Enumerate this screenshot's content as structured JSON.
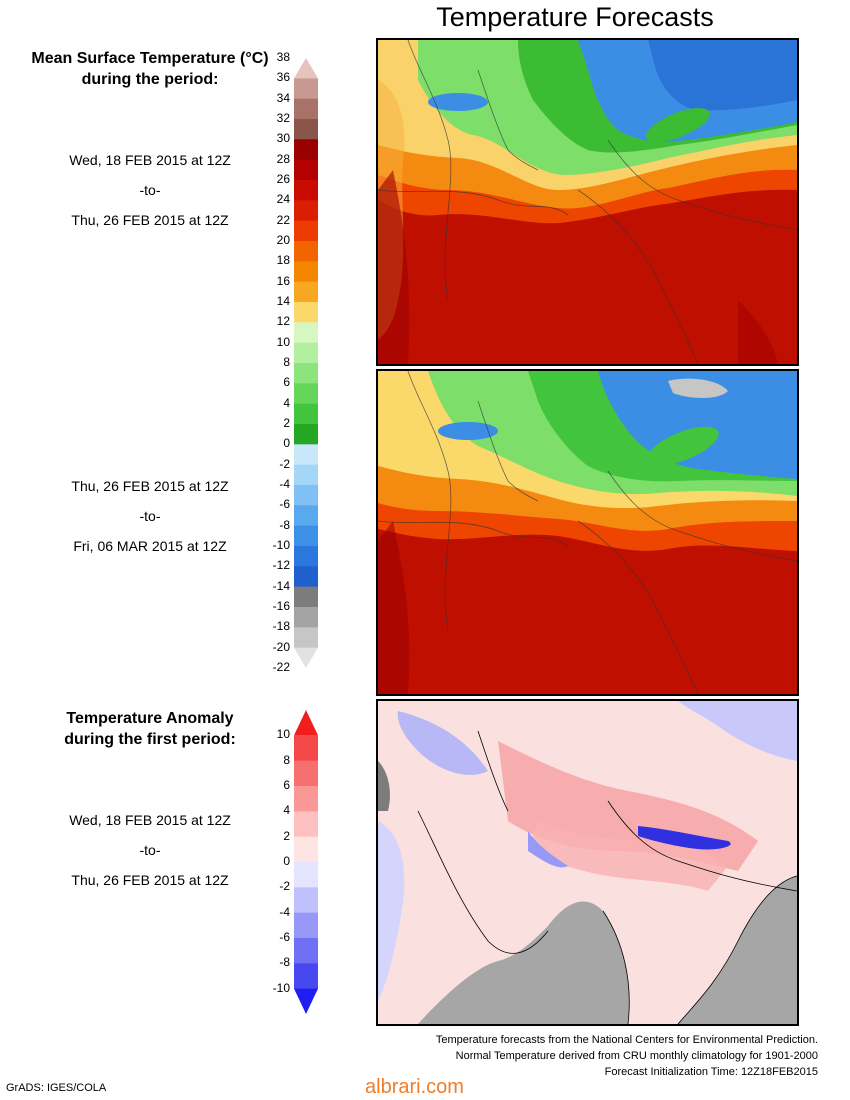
{
  "title": "Temperature Forecasts",
  "mean_temp": {
    "heading_line1": "Mean Surface Temperature (°C)",
    "heading_line2": "during the period:",
    "period1": {
      "start": "Wed, 18 FEB 2015 at 12Z",
      "sep": "-to-",
      "end": "Thu, 26 FEB 2015 at 12Z"
    },
    "period2": {
      "start": "Thu, 26 FEB 2015 at 12Z",
      "sep": "-to-",
      "end": "Fri, 06 MAR 2015 at 12Z"
    },
    "colorbar": {
      "ticks": [
        "38",
        "36",
        "34",
        "32",
        "30",
        "28",
        "26",
        "24",
        "22",
        "20",
        "18",
        "16",
        "14",
        "12",
        "10",
        "8",
        "6",
        "4",
        "2",
        "0",
        "-2",
        "-4",
        "-6",
        "-8",
        "-10",
        "-12",
        "-14",
        "-16",
        "-18",
        "-20",
        "-22"
      ],
      "colors": [
        "#e6c3bd",
        "#c89990",
        "#a87268",
        "#8a564c",
        "#9a0000",
        "#b30000",
        "#c80a00",
        "#dc1e00",
        "#ec3c00",
        "#f26400",
        "#f58700",
        "#f8a820",
        "#fad86a",
        "#d6f7c0",
        "#b2f0a0",
        "#8ce47c",
        "#66d65a",
        "#42c43c",
        "#24a824",
        "#c8e8fa",
        "#a4d6f8",
        "#80c0f4",
        "#5aa8ee",
        "#3c90e6",
        "#2a78dc",
        "#2060cc",
        "#7c7c7c",
        "#a4a4a4",
        "#c6c6c6",
        "#e2e2e2"
      ]
    }
  },
  "anomaly": {
    "heading_line1": "Temperature Anomaly",
    "heading_line2": "during the first period:",
    "period": {
      "start": "Wed, 18 FEB 2015 at 12Z",
      "sep": "-to-",
      "end": "Thu, 26 FEB 2015 at 12Z"
    },
    "colorbar": {
      "ticks": [
        "10",
        "8",
        "6",
        "4",
        "2",
        "0",
        "-2",
        "-4",
        "-6",
        "-8",
        "-10"
      ],
      "colors": [
        "#f01e1e",
        "#f44848",
        "#f77070",
        "#fa9898",
        "#fcc0c0",
        "#ffe4e4",
        "#e4e4ff",
        "#c0c0fc",
        "#9898f8",
        "#7070f4",
        "#4848f0",
        "#1e1ef0"
      ]
    }
  },
  "footer": {
    "line1": "Temperature forecasts from the National Centers for Environmental Prediction.",
    "line2": "Normal Temperature derived from CRU monthly climatology for 1901-2000",
    "line3": "Forecast Initialization Time: 12Z18FEB2015"
  },
  "credit": "GrADS: IGES/COLA",
  "watermark": "albrari.com"
}
